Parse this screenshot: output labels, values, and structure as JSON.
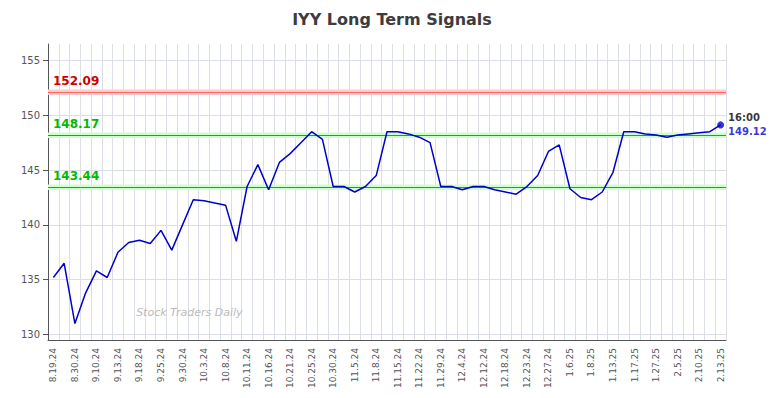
{
  "chart_data": {
    "type": "line",
    "title": "IYY Long Term Signals",
    "categories": [
      "8.19.24",
      null,
      "8.30.24",
      null,
      "9.10.24",
      null,
      "9.13.24",
      null,
      "9.18.24",
      null,
      "9.25.24",
      null,
      "9.30.24",
      null,
      "10.3.24",
      null,
      "10.8.24",
      null,
      "10.11.24",
      null,
      "10.16.24",
      null,
      "10.21.24",
      null,
      "10.25.24",
      null,
      "10.30.24",
      null,
      "11.5.24",
      null,
      "11.8.24",
      null,
      "11.15.24",
      null,
      "11.22.24",
      null,
      "11.29.24",
      null,
      "12.4.24",
      null,
      "12.12.24",
      null,
      "12.18.24",
      null,
      "12.23.24",
      null,
      "12.27.24",
      null,
      "1.6.25",
      null,
      "1.8.25",
      null,
      "1.13.25",
      null,
      "1.17.25",
      null,
      "1.27.25",
      null,
      "2.5.25",
      null,
      "2.10.25",
      null,
      "2.13.25"
    ],
    "values": [
      135.2,
      136.5,
      131.0,
      133.8,
      135.8,
      135.2,
      137.5,
      138.4,
      138.6,
      138.3,
      139.5,
      137.7,
      140.0,
      142.3,
      142.2,
      142.0,
      141.8,
      138.5,
      143.5,
      145.5,
      143.2,
      145.7,
      146.5,
      147.5,
      148.5,
      147.8,
      143.5,
      143.5,
      143.0,
      143.5,
      144.5,
      148.5,
      148.5,
      148.3,
      148.0,
      147.5,
      143.5,
      143.5,
      143.2,
      143.5,
      143.5,
      143.2,
      143.0,
      142.8,
      143.5,
      144.5,
      146.7,
      147.3,
      143.3,
      142.5,
      142.3,
      143.0,
      144.8,
      148.5,
      148.5,
      148.3,
      148.2,
      148.0,
      148.2,
      148.3,
      148.4,
      148.5,
      149.12
    ],
    "color": "#0000cc",
    "ylim": [
      129.5,
      156.5
    ],
    "yticks": [
      130,
      135,
      140,
      145,
      150,
      155
    ],
    "grid": true,
    "hlines": [
      {
        "y": 152.09,
        "color": "#ff6666",
        "label": "152.09",
        "label_color": "#cc0000"
      },
      {
        "y": 148.17,
        "color": "#00bb00",
        "label": "148.17",
        "label_color": "#00bb00"
      },
      {
        "y": 143.44,
        "color": "#00bb00",
        "label": "143.44",
        "label_color": "#00bb00"
      }
    ],
    "bands": [
      {
        "from": 151.84,
        "to": 152.34,
        "color": "#ffcccc"
      },
      {
        "from": 147.92,
        "to": 148.42,
        "color": "#ccffcc"
      },
      {
        "from": 143.19,
        "to": 143.69,
        "color": "#ccffcc"
      }
    ],
    "last_point": {
      "color": "#0000cc",
      "labels": [
        {
          "text": "16:00",
          "color": "#000000"
        },
        {
          "text": "149.12",
          "color": "#0000cc"
        }
      ]
    },
    "watermark": {
      "text": "Stock Traders Daily",
      "color": "#bbbbbb"
    }
  }
}
